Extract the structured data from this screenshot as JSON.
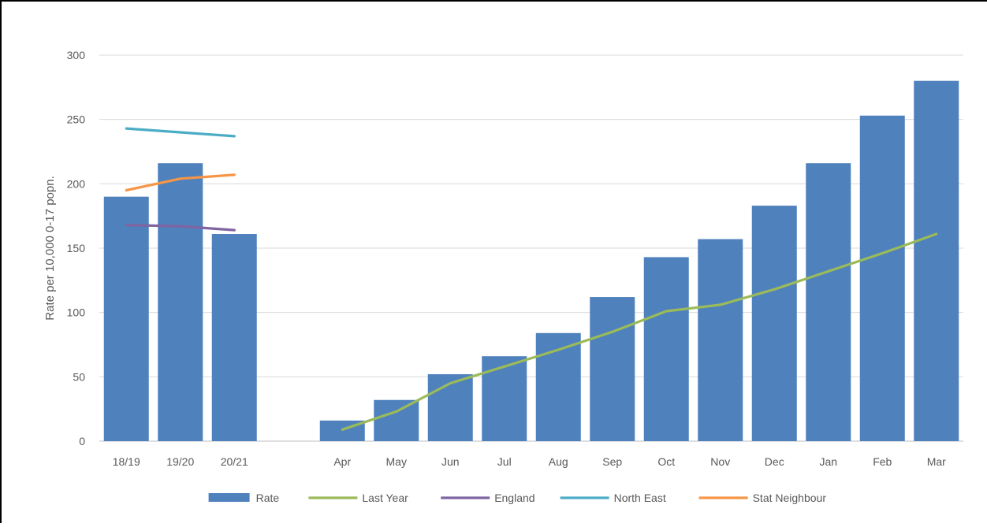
{
  "chart_data": {
    "type": "bar",
    "title": "",
    "xlabel": "",
    "ylabel": "Rate per 10,000 0-17 popn.",
    "ylim": [
      0,
      300
    ],
    "yticks": [
      0,
      50,
      100,
      150,
      200,
      250,
      300
    ],
    "grid": true,
    "legend_position": "bottom",
    "categories": [
      "18/19",
      "19/20",
      "20/21",
      "",
      "Apr",
      "May",
      "Jun",
      "Jul",
      "Aug",
      "Sep",
      "Oct",
      "Nov",
      "Dec",
      "Jan",
      "Feb",
      "Mar"
    ],
    "series": [
      {
        "name": "Rate",
        "type": "bar",
        "color": "#4F81BD",
        "values": [
          190,
          216,
          161,
          null,
          16,
          32,
          52,
          66,
          84,
          112,
          143,
          157,
          183,
          216,
          253,
          280
        ]
      },
      {
        "name": "Last Year",
        "type": "line",
        "color": "#9BBB59",
        "values": [
          null,
          null,
          null,
          null,
          9,
          23,
          45,
          58,
          71,
          85,
          101,
          106,
          118,
          132,
          146,
          161
        ]
      },
      {
        "name": "England",
        "type": "line",
        "color": "#8064A2",
        "values": [
          168,
          167,
          164,
          null,
          null,
          null,
          null,
          null,
          null,
          null,
          null,
          null,
          null,
          null,
          null,
          null
        ]
      },
      {
        "name": "North East",
        "type": "line",
        "color": "#4BACC6",
        "values": [
          243,
          240,
          237,
          null,
          null,
          null,
          null,
          null,
          null,
          null,
          null,
          null,
          null,
          null,
          null,
          null
        ]
      },
      {
        "name": "Stat Neighbour",
        "type": "line",
        "color": "#F79646",
        "values": [
          195,
          204,
          207,
          null,
          null,
          null,
          null,
          null,
          null,
          null,
          null,
          null,
          null,
          null,
          null,
          null
        ]
      }
    ]
  }
}
